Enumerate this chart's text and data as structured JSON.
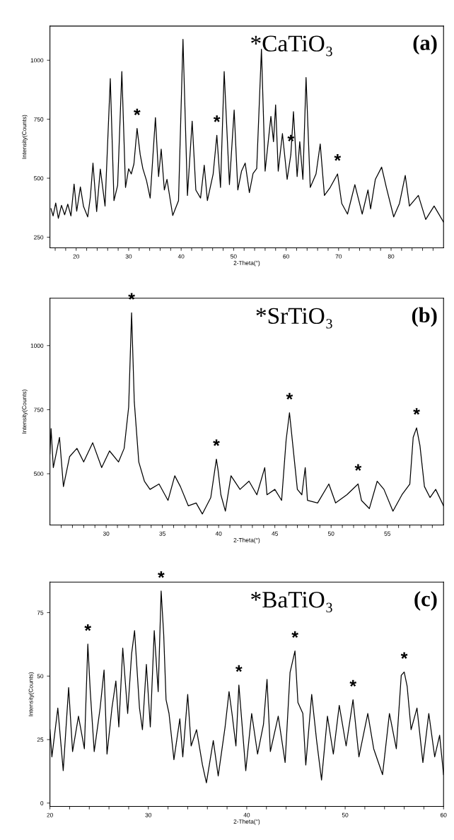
{
  "chart_data": [
    {
      "type": "line",
      "title": "*CaTiO₃",
      "annotations": [
        "(a)",
        {
          "text": "*",
          "x": 31.6,
          "y": 711
        },
        {
          "text": "*",
          "x": 46.8,
          "y": 682
        },
        {
          "text": "*",
          "x": 60.9,
          "y": 600
        },
        {
          "text": "*",
          "x": 69.8,
          "y": 518
        }
      ],
      "xlabel": "2-Theta(°)",
      "ylabel": "Intensity(Counts)",
      "x": [
        15.2,
        15.6,
        16.1,
        16.6,
        17.2,
        17.8,
        18.4,
        19.0,
        19.6,
        20.1,
        20.8,
        21.4,
        22.2,
        22.7,
        23.2,
        23.9,
        24.6,
        25.5,
        26.5,
        27.2,
        27.9,
        28.7,
        29.4,
        30.0,
        30.5,
        31.0,
        31.6,
        32.2,
        32.7,
        33.4,
        34.1,
        35.1,
        35.7,
        36.2,
        36.8,
        37.3,
        38.4,
        39.5,
        40.35,
        41.2,
        42.1,
        42.8,
        43.7,
        44.4,
        45.0,
        46.1,
        46.8,
        47.5,
        48.2,
        49.2,
        50.1,
        50.8,
        51.5,
        52.2,
        53.0,
        53.7,
        54.4,
        55.3,
        56.0,
        57.1,
        57.6,
        58.0,
        58.5,
        59.3,
        60.2,
        60.9,
        61.4,
        62.1,
        62.6,
        63.2,
        63.8,
        64.6,
        65.7,
        66.5,
        67.3,
        68.4,
        69.8,
        70.6,
        71.7,
        73.1,
        74.5,
        75.6,
        76.1,
        77.0,
        78.2,
        79.1,
        80.5,
        81.6,
        82.7,
        83.5,
        85.2,
        86.6,
        88.2,
        90.0
      ],
      "series": [
        {
          "color": "#000000",
          "values": [
            371,
            340,
            395,
            330,
            385,
            345,
            390,
            340,
            475,
            360,
            463,
            380,
            336,
            420,
            564,
            359,
            539,
            382,
            922,
            405,
            470,
            952,
            461,
            540,
            518,
            560,
            711,
            600,
            541,
            490,
            416,
            757,
            507,
            623,
            450,
            495,
            342,
            405,
            1089,
            427,
            742,
            450,
            416,
            555,
            405,
            518,
            682,
            461,
            952,
            473,
            789,
            450,
            530,
            564,
            439,
            520,
            541,
            1047,
            530,
            762,
            655,
            811,
            530,
            689,
            495,
            600,
            782,
            507,
            655,
            495,
            927,
            461,
            518,
            645,
            427,
            461,
            518,
            393,
            348,
            473,
            348,
            450,
            370,
            495,
            547,
            461,
            336,
            393,
            512,
            382,
            427,
            325,
            382,
            314
          ]
        }
      ],
      "xlim": [
        15,
        90
      ],
      "ylim": [
        205,
        1145
      ],
      "xticks": [
        {
          "value": 16,
          "label": null
        },
        {
          "value": 18,
          "label": null
        },
        20,
        {
          "value": 22,
          "label": null
        },
        {
          "value": 24,
          "label": null
        },
        {
          "value": 26,
          "label": null
        },
        {
          "value": 28,
          "label": null
        },
        30,
        {
          "value": 32,
          "label": null
        },
        {
          "value": 34,
          "label": null
        },
        {
          "value": 36,
          "label": null
        },
        {
          "value": 38,
          "label": null
        },
        40,
        {
          "value": 42,
          "label": null
        },
        {
          "value": 44,
          "label": null
        },
        {
          "value": 46,
          "label": null
        },
        {
          "value": 48,
          "label": null
        },
        50,
        {
          "value": 52,
          "label": null
        },
        {
          "value": 54,
          "label": null
        },
        {
          "value": 56,
          "label": null
        },
        {
          "value": 58,
          "label": null
        },
        60,
        {
          "value": 62,
          "label": null
        },
        {
          "value": 64,
          "label": null
        },
        {
          "value": 66,
          "label": null
        },
        {
          "value": 68,
          "label": null
        },
        70,
        {
          "value": 72,
          "label": null
        },
        {
          "value": 74,
          "label": null
        },
        {
          "value": 76,
          "label": null
        },
        {
          "value": 78,
          "label": null
        },
        80,
        {
          "value": 82,
          "label": null
        },
        {
          "value": 84,
          "label": null
        },
        {
          "value": 86,
          "label": null
        },
        {
          "value": 88,
          "label": null
        }
      ],
      "yticks": [
        250,
        500,
        750,
        1000
      ]
    },
    {
      "type": "line",
      "title": "*SrTiO₃",
      "annotations": [
        "(b)",
        {
          "text": "*",
          "x": 32.26,
          "y": 1128
        },
        {
          "text": "*",
          "x": 39.8,
          "y": 557
        },
        {
          "text": "*",
          "x": 46.3,
          "y": 738
        },
        {
          "text": "*",
          "x": 52.4,
          "y": 460
        },
        {
          "text": "*",
          "x": 57.6,
          "y": 679
        }
      ],
      "xlabel": "2-Theta(°)",
      "ylabel": "Intensity(Counts)",
      "x": [
        25.0,
        25.1,
        25.3,
        25.85,
        26.2,
        26.75,
        27.4,
        28.0,
        28.8,
        29.6,
        30.3,
        31.1,
        31.6,
        32.0,
        32.26,
        32.5,
        32.9,
        33.4,
        33.9,
        34.7,
        35.5,
        36.1,
        36.6,
        37.3,
        38.0,
        38.55,
        39.3,
        39.8,
        39.95,
        40.2,
        40.6,
        41.1,
        41.9,
        42.7,
        43.4,
        44.1,
        44.3,
        45.0,
        45.6,
        46.0,
        46.3,
        46.6,
        47.0,
        47.4,
        47.7,
        47.9,
        48.8,
        49.8,
        50.4,
        51.4,
        52.4,
        52.7,
        53.4,
        54.1,
        54.7,
        55.5,
        56.3,
        57.0,
        57.3,
        57.6,
        57.9,
        58.3,
        58.8,
        59.3,
        60.0
      ],
      "series": [
        {
          "color": "#000000",
          "values": [
            578,
            676,
            524,
            642,
            450,
            567,
            599,
            546,
            621,
            524,
            589,
            546,
            599,
            760,
            1128,
            781,
            546,
            471,
            439,
            460,
            396,
            492,
            450,
            375,
            386,
            343,
            407,
            557,
            514,
            418,
            354,
            492,
            439,
            471,
            418,
            524,
            418,
            439,
            396,
            631,
            738,
            610,
            439,
            418,
            524,
            396,
            386,
            460,
            386,
            418,
            460,
            396,
            364,
            471,
            439,
            354,
            418,
            460,
            642,
            679,
            610,
            450,
            407,
            439,
            375
          ]
        }
      ],
      "xlim": [
        25,
        60
      ],
      "ylim": [
        300,
        1185
      ],
      "xticks": [
        {
          "value": 26,
          "label": null
        },
        {
          "value": 27,
          "label": null
        },
        {
          "value": 28,
          "label": null
        },
        {
          "value": 29,
          "label": null
        },
        30,
        {
          "value": 31,
          "label": null
        },
        {
          "value": 32,
          "label": null
        },
        {
          "value": 33,
          "label": null
        },
        {
          "value": 34,
          "label": null
        },
        35,
        {
          "value": 36,
          "label": null
        },
        {
          "value": 37,
          "label": null
        },
        {
          "value": 38,
          "label": null
        },
        {
          "value": 39,
          "label": null
        },
        40,
        {
          "value": 41,
          "label": null
        },
        {
          "value": 42,
          "label": null
        },
        {
          "value": 43,
          "label": null
        },
        {
          "value": 44,
          "label": null
        },
        45,
        {
          "value": 46,
          "label": null
        },
        {
          "value": 47,
          "label": null
        },
        {
          "value": 48,
          "label": null
        },
        {
          "value": 49,
          "label": null
        },
        50,
        {
          "value": 51,
          "label": null
        },
        {
          "value": 52,
          "label": null
        },
        {
          "value": 53,
          "label": null
        },
        {
          "value": 54,
          "label": null
        },
        55,
        {
          "value": 56,
          "label": null
        },
        {
          "value": 57,
          "label": null
        },
        {
          "value": 58,
          "label": null
        },
        {
          "value": 59,
          "label": null
        }
      ],
      "yticks": [
        500,
        750,
        1000
      ]
    },
    {
      "type": "line",
      "title": "*BaTiO₃",
      "annotations": [
        "(c)",
        {
          "text": "*",
          "x": 23.85,
          "y": 62.6
        },
        {
          "text": "*",
          "x": 31.3,
          "y": 83.5
        },
        {
          "text": "*",
          "x": 39.2,
          "y": 46.5
        },
        {
          "text": "*",
          "x": 44.9,
          "y": 59.9
        },
        {
          "text": "*",
          "x": 50.8,
          "y": 40.7
        },
        {
          "text": "*",
          "x": 56.0,
          "y": 51.6
        }
      ],
      "xlabel": "2-Theta(°)",
      "ylabel": "Intensity(Counts)",
      "x": [
        20.0,
        20.2,
        20.8,
        21.35,
        21.9,
        22.3,
        22.9,
        23.5,
        23.85,
        24.1,
        24.5,
        25.1,
        25.5,
        25.8,
        26.3,
        26.7,
        27.0,
        27.4,
        27.9,
        28.3,
        28.6,
        29.1,
        29.4,
        29.8,
        30.2,
        30.6,
        31.0,
        31.3,
        31.56,
        31.8,
        32.1,
        32.6,
        33.2,
        33.5,
        34.0,
        34.35,
        34.9,
        35.5,
        35.9,
        36.6,
        37.1,
        37.8,
        38.2,
        38.5,
        38.9,
        39.2,
        39.9,
        40.5,
        41.1,
        41.7,
        42.06,
        42.4,
        43.2,
        43.9,
        44.4,
        44.9,
        45.2,
        45.7,
        46.0,
        46.6,
        47.1,
        47.6,
        48.2,
        48.8,
        49.4,
        50.1,
        50.8,
        51.4,
        52.3,
        52.9,
        53.8,
        54.5,
        55.2,
        55.7,
        56.0,
        56.3,
        56.7,
        57.3,
        57.9,
        58.5,
        59.1,
        59.6,
        60.0
      ],
      "series": [
        {
          "color": "#000000",
          "values": [
            28.9,
            18.2,
            37.4,
            12.8,
            45.5,
            20.3,
            34.2,
            21.4,
            62.6,
            43.9,
            20.3,
            37.4,
            52.4,
            19.3,
            37.4,
            48.1,
            30.0,
            61.0,
            35.3,
            58.8,
            67.9,
            37.4,
            28.9,
            54.6,
            30.0,
            67.9,
            43.9,
            83.5,
            66.4,
            40.7,
            35.3,
            17.1,
            33.2,
            18.2,
            42.8,
            22.5,
            28.9,
            15.0,
            8.0,
            24.6,
            10.7,
            30.0,
            43.9,
            35.3,
            22.5,
            46.5,
            12.8,
            35.3,
            19.3,
            31.0,
            48.7,
            20.3,
            34.2,
            16.0,
            51.4,
            59.9,
            39.6,
            35.3,
            15.0,
            42.8,
            24.6,
            9.1,
            34.2,
            19.3,
            38.5,
            22.5,
            40.7,
            18.2,
            35.3,
            21.4,
            11.2,
            35.3,
            21.4,
            50.3,
            51.6,
            46.0,
            28.9,
            37.4,
            16.0,
            35.3,
            18.2,
            26.7,
            11.2
          ]
        }
      ],
      "xlim": [
        20,
        60
      ],
      "ylim": [
        -1.3,
        87
      ],
      "xticks": [
        20,
        {
          "value": 22,
          "label": null
        },
        {
          "value": 24,
          "label": null
        },
        {
          "value": 26,
          "label": null
        },
        {
          "value": 28,
          "label": null
        },
        30,
        {
          "value": 32,
          "label": null
        },
        {
          "value": 34,
          "label": null
        },
        {
          "value": 36,
          "label": null
        },
        {
          "value": 38,
          "label": null
        },
        40,
        {
          "value": 42,
          "label": null
        },
        {
          "value": 44,
          "label": null
        },
        {
          "value": 46,
          "label": null
        },
        {
          "value": 48,
          "label": null
        },
        50,
        {
          "value": 52,
          "label": null
        },
        {
          "value": 54,
          "label": null
        },
        {
          "value": 56,
          "label": null
        },
        {
          "value": 58,
          "label": null
        },
        60
      ],
      "yticks": [
        0,
        25,
        50,
        75
      ]
    }
  ]
}
